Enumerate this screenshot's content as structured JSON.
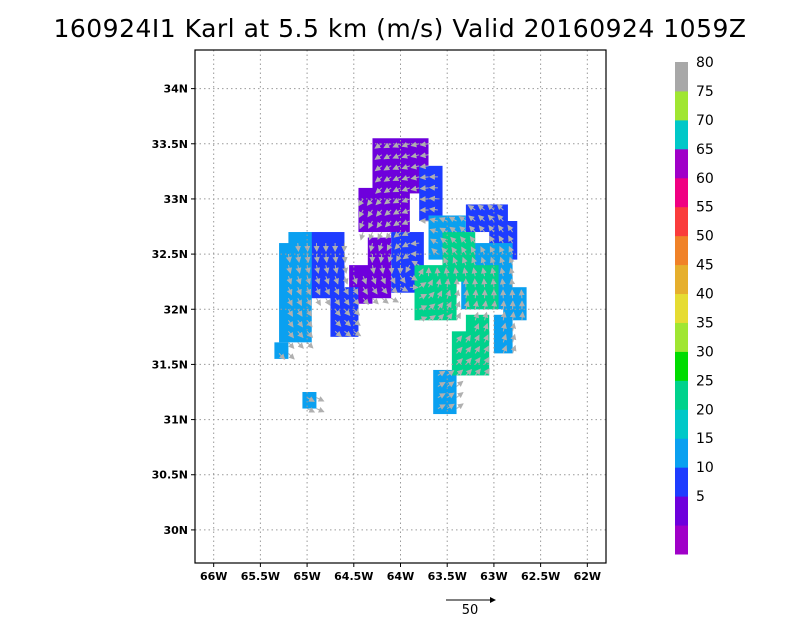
{
  "title": "160924I1 Karl at 5.5 km (m/s) Valid 20160924 1059Z",
  "map": {
    "lon_range": [
      -66.2,
      -61.8
    ],
    "lat_range": [
      29.7,
      34.35
    ],
    "x_ticks": [
      {
        "value": -66.0,
        "label": "66W"
      },
      {
        "value": -65.5,
        "label": "65.5W"
      },
      {
        "value": -65.0,
        "label": "65W"
      },
      {
        "value": -64.5,
        "label": "64.5W"
      },
      {
        "value": -64.0,
        "label": "64W"
      },
      {
        "value": -63.5,
        "label": "63.5W"
      },
      {
        "value": -63.0,
        "label": "63W"
      },
      {
        "value": -62.5,
        "label": "62.5W"
      },
      {
        "value": -62.0,
        "label": "62W"
      }
    ],
    "y_ticks": [
      {
        "value": 30.0,
        "label": "30N"
      },
      {
        "value": 30.5,
        "label": "30.5N"
      },
      {
        "value": 31.0,
        "label": "31N"
      },
      {
        "value": 31.5,
        "label": "31.5N"
      },
      {
        "value": 32.0,
        "label": "32N"
      },
      {
        "value": 32.5,
        "label": "32.5N"
      },
      {
        "value": 33.0,
        "label": "33N"
      },
      {
        "value": 33.5,
        "label": "33.5N"
      },
      {
        "value": 34.0,
        "label": "34N"
      }
    ],
    "grid": "dotted",
    "cell_deg": 0.05,
    "vector_color": "#b0b0b0",
    "wind_regions": [
      {
        "lon": [
          -64.3,
          -63.7
        ],
        "lat": [
          33.05,
          33.55
        ],
        "level": 0
      },
      {
        "lon": [
          -64.45,
          -63.9
        ],
        "lat": [
          32.7,
          33.1
        ],
        "level": 0
      },
      {
        "lon": [
          -64.35,
          -64.1
        ],
        "lat": [
          32.1,
          32.65
        ],
        "level": 0
      },
      {
        "lon": [
          -64.55,
          -64.3
        ],
        "lat": [
          32.05,
          32.4
        ],
        "level": 0
      },
      {
        "lon": [
          -63.8,
          -63.55
        ],
        "lat": [
          32.8,
          33.3
        ],
        "level": 1
      },
      {
        "lon": [
          -64.1,
          -63.75
        ],
        "lat": [
          32.15,
          32.7
        ],
        "level": 1
      },
      {
        "lon": [
          -65.05,
          -64.6
        ],
        "lat": [
          32.1,
          32.7
        ],
        "level": 1
      },
      {
        "lon": [
          -64.75,
          -64.45
        ],
        "lat": [
          31.75,
          32.2
        ],
        "level": 1
      },
      {
        "lon": [
          -63.3,
          -62.85
        ],
        "lat": [
          32.7,
          32.95
        ],
        "level": 1
      },
      {
        "lon": [
          -63.05,
          -62.75
        ],
        "lat": [
          32.45,
          32.8
        ],
        "level": 1
      },
      {
        "lon": [
          -65.3,
          -64.95
        ],
        "lat": [
          31.7,
          32.6
        ],
        "level": 2
      },
      {
        "lon": [
          -65.2,
          -64.95
        ],
        "lat": [
          32.5,
          32.7
        ],
        "level": 2
      },
      {
        "lon": [
          -63.7,
          -63.3
        ],
        "lat": [
          32.45,
          32.85
        ],
        "level": 2
      },
      {
        "lon": [
          -63.35,
          -62.8
        ],
        "lat": [
          32.0,
          32.6
        ],
        "level": 2
      },
      {
        "lon": [
          -62.9,
          -62.65
        ],
        "lat": [
          31.9,
          32.2
        ],
        "level": 2
      },
      {
        "lon": [
          -63.0,
          -62.8
        ],
        "lat": [
          31.6,
          31.95
        ],
        "level": 2
      },
      {
        "lon": [
          -65.35,
          -65.2
        ],
        "lat": [
          31.55,
          31.7
        ],
        "level": 2
      },
      {
        "lon": [
          -63.65,
          -63.4
        ],
        "lat": [
          31.05,
          31.45
        ],
        "level": 2
      },
      {
        "lon": [
          -65.05,
          -64.9
        ],
        "lat": [
          31.1,
          31.25
        ],
        "level": 2
      },
      {
        "lon": [
          -63.85,
          -63.4
        ],
        "lat": [
          31.9,
          32.4
        ],
        "level": 3
      },
      {
        "lon": [
          -63.55,
          -63.2
        ],
        "lat": [
          32.25,
          32.7
        ],
        "level": 3
      },
      {
        "lon": [
          -63.3,
          -62.95
        ],
        "lat": [
          32.0,
          32.4
        ],
        "level": 3
      },
      {
        "lon": [
          -63.45,
          -63.05
        ],
        "lat": [
          31.4,
          31.8
        ],
        "level": 3
      },
      {
        "lon": [
          -63.3,
          -63.05
        ],
        "lat": [
          31.7,
          31.95
        ],
        "level": 3
      }
    ]
  },
  "colorbar": {
    "levels": [
      {
        "label": "",
        "color": "#a000c8"
      },
      {
        "label": "5",
        "color": "#6e00dc"
      },
      {
        "label": "10",
        "color": "#1e3cff"
      },
      {
        "label": "15",
        "color": "#0aa0f0"
      },
      {
        "label": "20",
        "color": "#00c8c8"
      },
      {
        "label": "25",
        "color": "#00d28c"
      },
      {
        "label": "30",
        "color": "#00dc00"
      },
      {
        "label": "35",
        "color": "#a0e632"
      },
      {
        "label": "40",
        "color": "#e6dc32"
      },
      {
        "label": "45",
        "color": "#e6af2d"
      },
      {
        "label": "50",
        "color": "#f08228"
      },
      {
        "label": "55",
        "color": "#fa3c3c"
      },
      {
        "label": "60",
        "color": "#f00082"
      },
      {
        "label": "65",
        "color": "#a000c8"
      },
      {
        "label": "70",
        "color": "#00c8c8"
      },
      {
        "label": "75",
        "color": "#a0e632"
      },
      {
        "label": "80",
        "color": "#a8a8a8"
      }
    ]
  },
  "reference_vector": {
    "label": "50"
  }
}
